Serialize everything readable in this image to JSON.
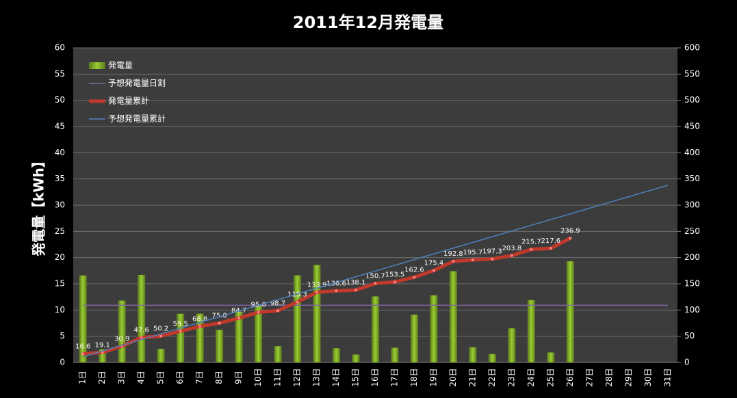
{
  "chart_data": {
    "type": "bar",
    "title": "2011年12月発電量",
    "ylabel": "発電量【kWh】",
    "categories": [
      "1日",
      "2日",
      "3日",
      "4日",
      "5日",
      "6日",
      "7日",
      "8日",
      "9日",
      "10日",
      "11日",
      "12日",
      "13日",
      "14日",
      "15日",
      "16日",
      "17日",
      "18日",
      "19日",
      "20日",
      "21日",
      "22日",
      "23日",
      "24日",
      "25日",
      "26日",
      "27日",
      "28日",
      "29日",
      "30日",
      "31日"
    ],
    "series": [
      {
        "name": "発電量",
        "type": "bar",
        "color": "#9acd32",
        "values": [
          16.6,
          2.5,
          11.8,
          16.7,
          2.6,
          9.3,
          9.3,
          6.2,
          9.7,
          10.9,
          3.1,
          16.6,
          18.6,
          2.7,
          1.5,
          12.6,
          2.8,
          9.1,
          12.8,
          17.4,
          2.9,
          1.6,
          6.5,
          11.9,
          1.9,
          19.3,
          null,
          null,
          null,
          null,
          null
        ]
      },
      {
        "name": "予想発電量日割",
        "type": "line",
        "color": "#8064a2",
        "values": [
          10.9,
          10.9,
          10.9,
          10.9,
          10.9,
          10.9,
          10.9,
          10.9,
          10.9,
          10.9,
          10.9,
          10.9,
          10.9,
          10.9,
          10.9,
          10.9,
          10.9,
          10.9,
          10.9,
          10.9,
          10.9,
          10.9,
          10.9,
          10.9,
          10.9,
          10.9,
          10.9,
          10.9,
          10.9,
          10.9,
          10.9
        ]
      },
      {
        "name": "発電量累計",
        "type": "line",
        "axis": "y2",
        "color": "#c0392b",
        "values": [
          16.6,
          19.1,
          30.9,
          47.6,
          50.2,
          59.5,
          68.8,
          75.0,
          84.7,
          95.6,
          98.7,
          115.3,
          133.9,
          136.6,
          138.1,
          150.7,
          153.5,
          162.6,
          175.4,
          192.8,
          195.7,
          197.3,
          203.8,
          215.7,
          217.6,
          236.9,
          null,
          null,
          null,
          null,
          null
        ],
        "value_labels": [
          "16.6",
          "19.1",
          "30.9",
          "47.6",
          "50.2",
          "59.5",
          "68.8",
          "75.0",
          "84.7",
          "95.6",
          "98.7",
          "115.3",
          "133.9",
          "136.6",
          "138.1",
          "150.7",
          "153.5",
          "162.6",
          "175.4",
          "192.8",
          "195.7",
          "197.3",
          "203.8",
          "215.7",
          "217.6",
          "236.9",
          null,
          null,
          null,
          null,
          null
        ]
      },
      {
        "name": "予想発電量累計",
        "type": "line",
        "axis": "y2",
        "color": "#4f81bd",
        "values": [
          10.9,
          21.8,
          32.7,
          43.6,
          54.5,
          65.4,
          76.3,
          87.2,
          98.1,
          109,
          119.9,
          130.8,
          141.7,
          152.6,
          163.5,
          174.4,
          185.3,
          196.2,
          207.1,
          218,
          228.9,
          239.8,
          250.7,
          261.6,
          272.5,
          283.4,
          294.3,
          305.2,
          316.1,
          327,
          337.9
        ]
      }
    ],
    "ylim": [
      0,
      60
    ],
    "yticks": [
      0,
      5,
      10,
      15,
      20,
      25,
      30,
      35,
      40,
      45,
      50,
      55,
      60
    ],
    "y2lim": [
      0,
      600
    ],
    "y2ticks": [
      0,
      50,
      100,
      150,
      200,
      250,
      300,
      350,
      400,
      450,
      500,
      550,
      600
    ],
    "grid": true,
    "legend": "upper left"
  }
}
